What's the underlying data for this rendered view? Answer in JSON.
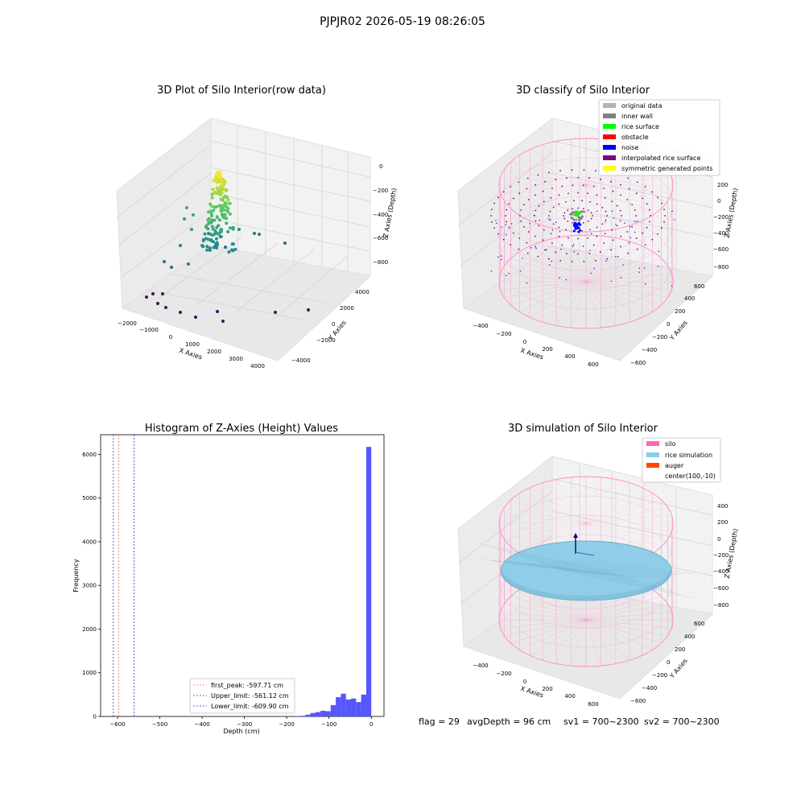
{
  "suptitle": "PJPJR02 2026-05-19 08:26:05",
  "status": {
    "flag": "flag = 29",
    "avg": "avgDepth = 96 cm",
    "sv1": "sv1 = 700~2300",
    "sv2": "sv2 = 700~2300"
  },
  "colors": {
    "hist_bar": "#4d4dff",
    "pane": "#f2f2f2",
    "pane_side": "#ebebeb",
    "grid": "#d4d4d4",
    "silo_wire": "#ff8ac4",
    "rice_fill": "#8fcde8",
    "rice_edge": "#6aa0b8",
    "peak_line": "#ff5a5a",
    "limit_line": "#3333cc"
  },
  "chart_data": [
    {
      "type": "scatter",
      "title": "3D Plot of Silo Interior(row data)",
      "xlabel": "X Axies",
      "ylabel": "Y Axies",
      "zlabel": "Z Axies (Depth)",
      "xticks": [
        "−2000",
        "−1000",
        "0",
        "1000",
        "2000",
        "3000",
        "4000"
      ],
      "yticks": [
        "−4000",
        "−2000",
        "0",
        "2000",
        "4000"
      ],
      "zticks": [
        "−800",
        "−600",
        "−400",
        "−200",
        "0"
      ],
      "xlim": [
        -2300,
        4300
      ],
      "ylim": [
        -4500,
        4500
      ],
      "zlim": [
        -900,
        50
      ],
      "colormap": "viridis"
    },
    {
      "type": "scatter",
      "title": "3D classify of Silo Interior",
      "xlabel": "X Axies",
      "ylabel": "Y Axies",
      "zlabel": "Z Axies (Depth)",
      "xticks": [
        "−400",
        "−200",
        "0",
        "200",
        "400",
        "600"
      ],
      "yticks": [
        "−600",
        "−400",
        "−200",
        "0",
        "200",
        "400",
        "600"
      ],
      "zticks": [
        "−800",
        "−600",
        "−400",
        "−200",
        "0",
        "200"
      ],
      "xlim": [
        -500,
        700
      ],
      "ylim": [
        -700,
        700
      ],
      "zlim": [
        -900,
        300
      ],
      "legend_position": "top-right",
      "legend": [
        {
          "label": "original data",
          "color": "#b3b3b3"
        },
        {
          "label": "inner wall",
          "color": "#808080"
        },
        {
          "label": "rice surface",
          "color": "#00ff00"
        },
        {
          "label": "obstacle",
          "color": "#ff0000"
        },
        {
          "label": "noise",
          "color": "#0000ff"
        },
        {
          "label": "interpolated rice surface",
          "color": "#800080"
        },
        {
          "label": "symmetric generated points",
          "color": "#ffff00"
        }
      ]
    },
    {
      "type": "bar",
      "title": "Histogram of Z-Axies (Height) Values",
      "xlabel": "Depth (cm)",
      "ylabel": "Frequency",
      "xlim": [
        -640,
        30
      ],
      "ylim": [
        0,
        6450
      ],
      "xticks": [
        -600,
        -500,
        -400,
        -300,
        -200,
        -100,
        0
      ],
      "xtick_labels": [
        "−600",
        "−500",
        "−400",
        "−300",
        "−200",
        "−100",
        "0"
      ],
      "yticks": [
        0,
        1000,
        2000,
        3000,
        4000,
        5000,
        6000
      ],
      "bins": [
        {
          "x0": -180,
          "x1": -168,
          "count": 5
        },
        {
          "x0": -168,
          "x1": -156,
          "count": 15
        },
        {
          "x0": -156,
          "x1": -144,
          "count": 40
        },
        {
          "x0": -144,
          "x1": -132,
          "count": 80
        },
        {
          "x0": -132,
          "x1": -120,
          "count": 100
        },
        {
          "x0": -120,
          "x1": -108,
          "count": 130
        },
        {
          "x0": -108,
          "x1": -96,
          "count": 120
        },
        {
          "x0": -96,
          "x1": -84,
          "count": 260
        },
        {
          "x0": -84,
          "x1": -72,
          "count": 440
        },
        {
          "x0": -72,
          "x1": -60,
          "count": 520
        },
        {
          "x0": -60,
          "x1": -48,
          "count": 390
        },
        {
          "x0": -48,
          "x1": -36,
          "count": 410
        },
        {
          "x0": -36,
          "x1": -24,
          "count": 330
        },
        {
          "x0": -24,
          "x1": -12,
          "count": 500
        },
        {
          "x0": -12,
          "x1": 0,
          "count": 6170
        }
      ],
      "vlines": [
        {
          "x": -597.71,
          "label": "first_peak: -597.71 cm",
          "color": "#ff5a5a"
        },
        {
          "x": -561.12,
          "label": "Upper_limit: -561.12 cm",
          "color": "#3333cc"
        },
        {
          "x": -609.9,
          "label": "Lower_limit: -609.90 cm",
          "color": "#3333cc"
        }
      ],
      "legend_position": "lower-center"
    },
    {
      "type": "other",
      "title": "3D simulation of Silo Interior",
      "xlabel": "X Axies",
      "ylabel": "Y Axies",
      "zlabel": "Z Axies (Depth)",
      "xticks": [
        "−400",
        "−200",
        "0",
        "200",
        "400",
        "600"
      ],
      "yticks": [
        "−600",
        "−400",
        "−200",
        "0",
        "200",
        "400",
        "600"
      ],
      "zticks": [
        "−800",
        "−600",
        "−400",
        "−200",
        "0",
        "200",
        "400"
      ],
      "legend_position": "top-right",
      "legend": [
        {
          "label": "silo",
          "color": "#ff69b4"
        },
        {
          "label": "rice simulation",
          "color": "#87ceeb"
        },
        {
          "label": "auger",
          "color": "#ff4500"
        },
        {
          "label": "center(100,-10)",
          "color": null
        }
      ]
    }
  ]
}
